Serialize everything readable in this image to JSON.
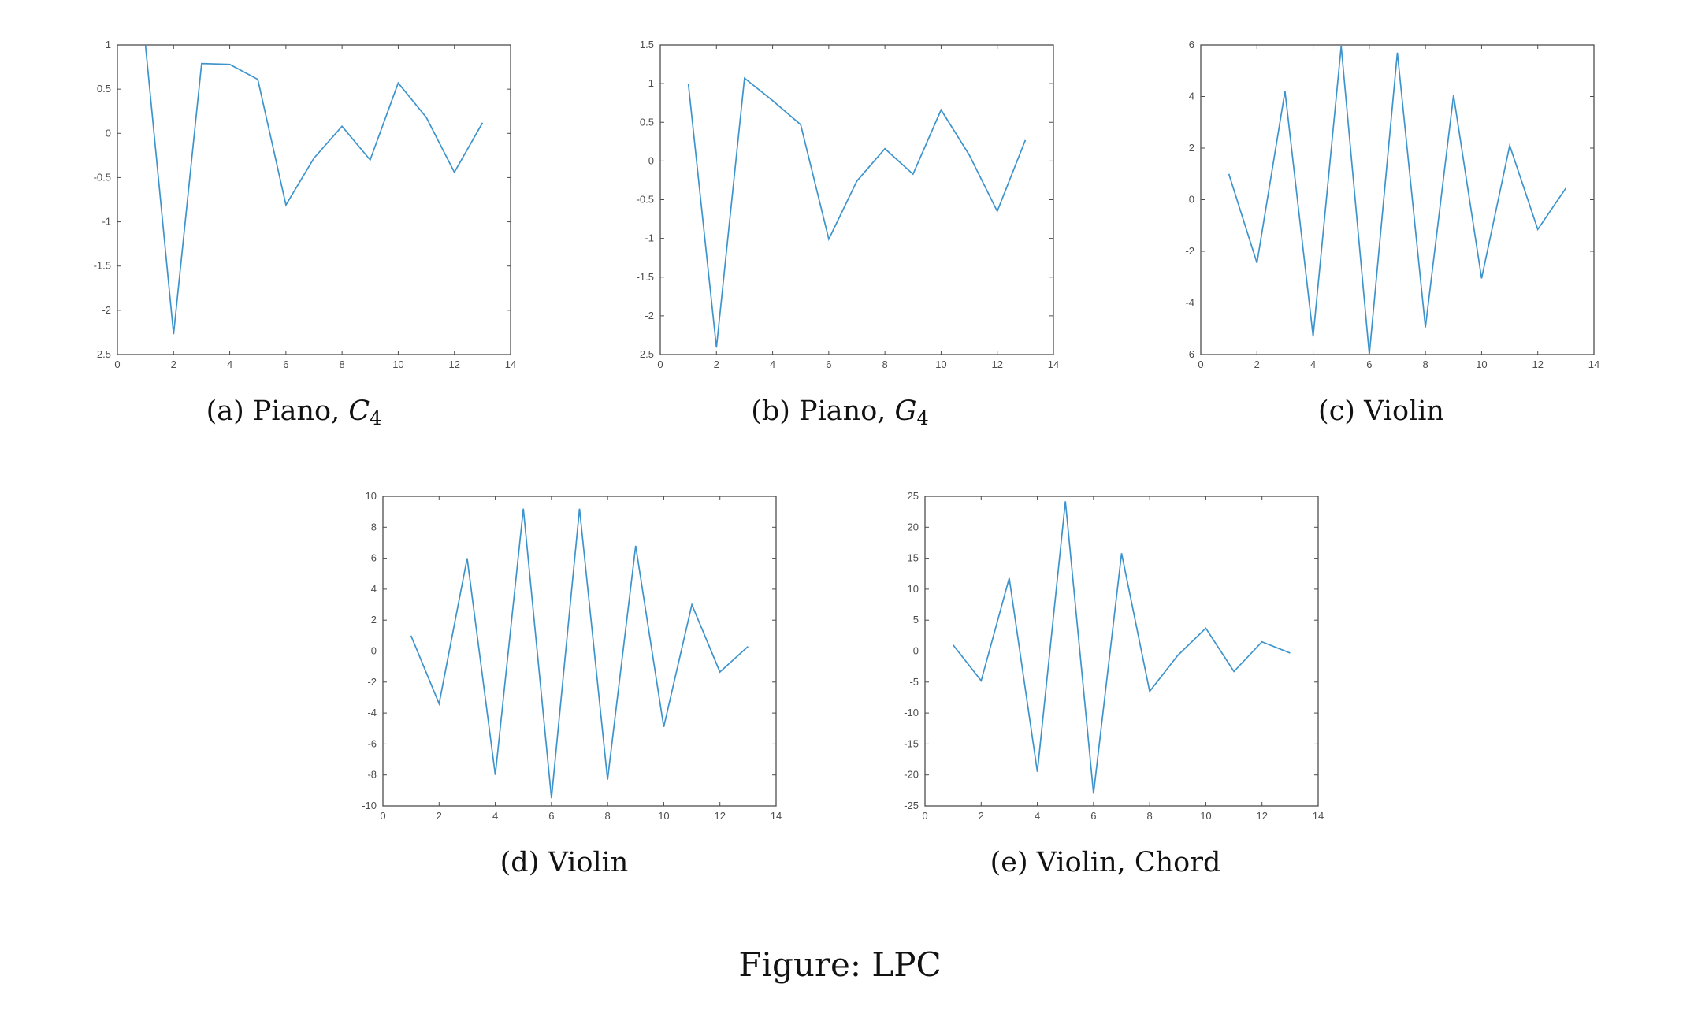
{
  "figure_caption": "Figure: LPC",
  "colors": {
    "series": "#3d94cc",
    "axes": "#4d4d4d"
  },
  "chart_data": [
    {
      "id": "a",
      "type": "line",
      "caption": {
        "prefix": "(a) Piano, ",
        "note": "C",
        "sub": "4"
      },
      "x": [
        1,
        2,
        3,
        4,
        5,
        6,
        7,
        8,
        9,
        10,
        11,
        12,
        13
      ],
      "values": [
        1.0,
        -2.27,
        0.79,
        0.78,
        0.61,
        -0.81,
        -0.28,
        0.08,
        -0.3,
        0.57,
        0.18,
        -0.44,
        0.12
      ],
      "xlim": [
        0,
        14
      ],
      "ylim": [
        -2.5,
        1
      ],
      "xticks": [
        0,
        2,
        4,
        6,
        8,
        10,
        12,
        14
      ],
      "yticks": [
        -2.5,
        -2,
        -1.5,
        -1,
        -0.5,
        0,
        0.5,
        1
      ],
      "ytick_labels": [
        "-2.5",
        "-2",
        "-1.5",
        "-1",
        "-0.5",
        "0",
        "0.5",
        "1"
      ],
      "grid": false
    },
    {
      "id": "b",
      "type": "line",
      "caption": {
        "prefix": "(b) Piano, ",
        "note": "G",
        "sub": "4"
      },
      "x": [
        1,
        2,
        3,
        4,
        5,
        6,
        7,
        8,
        9,
        10,
        11,
        12,
        13
      ],
      "values": [
        1.0,
        -2.41,
        1.07,
        0.78,
        0.47,
        -1.01,
        -0.26,
        0.16,
        -0.17,
        0.66,
        0.08,
        -0.65,
        0.27
      ],
      "xlim": [
        0,
        14
      ],
      "ylim": [
        -2.5,
        1.5
      ],
      "xticks": [
        0,
        2,
        4,
        6,
        8,
        10,
        12,
        14
      ],
      "yticks": [
        -2.5,
        -2,
        -1.5,
        -1,
        -0.5,
        0,
        0.5,
        1,
        1.5
      ],
      "ytick_labels": [
        "-2.5",
        "-2",
        "-1.5",
        "-1",
        "-0.5",
        "0",
        "0.5",
        "1",
        "1.5"
      ],
      "grid": false
    },
    {
      "id": "c",
      "type": "line",
      "caption": {
        "prefix": "(c) Violin",
        "note": "",
        "sub": ""
      },
      "x": [
        1,
        2,
        3,
        4,
        5,
        6,
        7,
        8,
        9,
        10,
        11,
        12,
        13
      ],
      "values": [
        1.0,
        -2.45,
        4.2,
        -5.3,
        5.95,
        -6.0,
        5.7,
        -4.95,
        4.05,
        -3.05,
        2.1,
        -1.15,
        0.45
      ],
      "xlim": [
        0,
        14
      ],
      "ylim": [
        -6,
        6
      ],
      "xticks": [
        0,
        2,
        4,
        6,
        8,
        10,
        12,
        14
      ],
      "yticks": [
        -6,
        -4,
        -2,
        0,
        2,
        4,
        6
      ],
      "ytick_labels": [
        "-6",
        "-4",
        "-2",
        "0",
        "2",
        "4",
        "6"
      ],
      "grid": false
    },
    {
      "id": "d",
      "type": "line",
      "caption": {
        "prefix": "(d) Violin",
        "note": "",
        "sub": ""
      },
      "x": [
        1,
        2,
        3,
        4,
        5,
        6,
        7,
        8,
        9,
        10,
        11,
        12,
        13
      ],
      "values": [
        1.0,
        -3.4,
        6.0,
        -8.0,
        9.2,
        -9.5,
        9.2,
        -8.3,
        6.8,
        -4.9,
        3.0,
        -1.35,
        0.3
      ],
      "xlim": [
        0,
        14
      ],
      "ylim": [
        -10,
        10
      ],
      "xticks": [
        0,
        2,
        4,
        6,
        8,
        10,
        12,
        14
      ],
      "yticks": [
        -10,
        -8,
        -6,
        -4,
        -2,
        0,
        2,
        4,
        6,
        8,
        10
      ],
      "ytick_labels": [
        "-10",
        "-8",
        "-6",
        "-4",
        "-2",
        "0",
        "2",
        "4",
        "6",
        "8",
        "10"
      ],
      "grid": false
    },
    {
      "id": "e",
      "type": "line",
      "caption": {
        "prefix": "(e) Violin, Chord",
        "note": "",
        "sub": ""
      },
      "x": [
        1,
        2,
        3,
        4,
        5,
        6,
        7,
        8,
        9,
        10,
        11,
        12,
        13
      ],
      "values": [
        1.0,
        -4.8,
        11.8,
        -19.5,
        24.2,
        -23.0,
        15.8,
        -6.5,
        -0.7,
        3.7,
        -3.3,
        1.5,
        -0.3
      ],
      "xlim": [
        0,
        14
      ],
      "ylim": [
        -25,
        25
      ],
      "xticks": [
        0,
        2,
        4,
        6,
        8,
        10,
        12,
        14
      ],
      "yticks": [
        -25,
        -20,
        -15,
        -10,
        -5,
        0,
        5,
        10,
        15,
        20,
        25
      ],
      "ytick_labels": [
        "-25",
        "-20",
        "-15",
        "-10",
        "-5",
        "0",
        "5",
        "10",
        "15",
        "20",
        "25"
      ],
      "grid": false
    }
  ]
}
